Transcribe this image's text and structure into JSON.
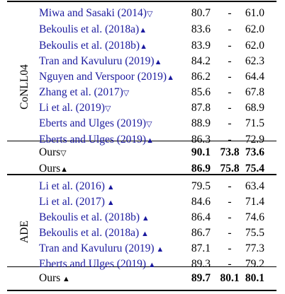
{
  "sections": [
    {
      "label": "CoNLL04",
      "rows": [
        {
          "method": "Miwa and Sasaki (2014)",
          "mark": "▽",
          "c1": "80.7",
          "c2": "-",
          "c3": "61.0"
        },
        {
          "method": "Bekoulis et al. (2018a)",
          "mark": "▲",
          "c1": "83.6",
          "c2": "-",
          "c3": "62.0"
        },
        {
          "method": "Bekoulis et al. (2018b)",
          "mark": "▲",
          "c1": "83.9",
          "c2": "-",
          "c3": "62.0"
        },
        {
          "method": "Tran and Kavuluru (2019)",
          "mark": "▲",
          "c1": "84.2",
          "c2": "-",
          "c3": "62.3"
        },
        {
          "method": "Nguyen and Verspoor (2019)",
          "mark": "▲",
          "c1": "86.2",
          "c2": "-",
          "c3": "64.4"
        },
        {
          "method": "Zhang et al. (2017)",
          "mark": "▽",
          "c1": "85.6",
          "c2": "-",
          "c3": "67.8"
        },
        {
          "method": "Li et al. (2019)",
          "mark": "▽",
          "c1": "87.8",
          "c2": "-",
          "c3": "68.9"
        },
        {
          "method": "Eberts and Ulges (2019)",
          "mark": "▽",
          "c1": "88.9",
          "c2": "-",
          "c3": "71.5"
        },
        {
          "method": "Eberts and Ulges (2019)",
          "mark": "▲",
          "c1": "86.3",
          "c2": "-",
          "c3": "72.9"
        }
      ],
      "ours": [
        {
          "method": "Ours",
          "mark": "▽",
          "c1": "90.1",
          "c2": "73.8",
          "c3": "73.6"
        },
        {
          "method": "Ours",
          "mark": "▲",
          "c1": "86.9",
          "c2": "75.8",
          "c3": "75.4"
        }
      ]
    },
    {
      "label": "ADE",
      "rows": [
        {
          "method": "Li et al. (2016)",
          "mark": " ▲",
          "c1": "79.5",
          "c2": "-",
          "c3": "63.4"
        },
        {
          "method": "Li et al. (2017)",
          "mark": " ▲",
          "c1": "84.6",
          "c2": "-",
          "c3": "71.4"
        },
        {
          "method": "Bekoulis et al. (2018b)",
          "mark": " ▲",
          "c1": "86.4",
          "c2": "-",
          "c3": "74.6"
        },
        {
          "method": "Bekoulis et al. (2018a)",
          "mark": " ▲",
          "c1": "86.7",
          "c2": "-",
          "c3": "75.5"
        },
        {
          "method": "Tran and Kavuluru (2019)",
          "mark": " ▲",
          "c1": "87.1",
          "c2": "-",
          "c3": "77.3"
        },
        {
          "method": "Eberts and Ulges (2019)",
          "mark": " ▲",
          "c1": "89.3",
          "c2": "-",
          "c3": "79.2"
        }
      ],
      "ours": [
        {
          "method": "Ours",
          "mark": " ▲",
          "c1": "89.7",
          "c2": "80.1",
          "c3": "80.1"
        }
      ]
    }
  ],
  "colors": {
    "reference": "#1b1a9e",
    "text": "#000000"
  }
}
